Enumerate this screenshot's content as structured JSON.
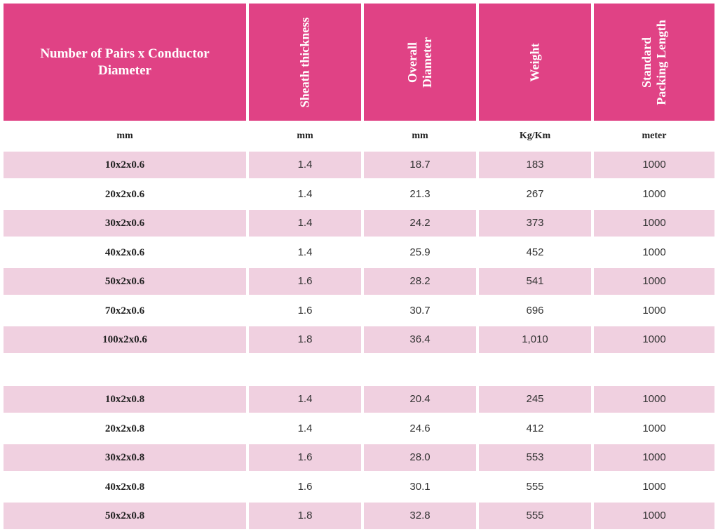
{
  "header": {
    "first": "Number of Pairs x Conductor Diameter",
    "vertical": [
      [
        "Sheath thickness"
      ],
      [
        "Overall",
        "Diameter"
      ],
      [
        "Weight"
      ],
      [
        "Standard",
        "Packing Length"
      ]
    ]
  },
  "units": [
    "mm",
    "mm",
    "mm",
    "Kg/Km",
    "meter"
  ],
  "group1": [
    [
      "10x2x0.6",
      "1.4",
      "18.7",
      "183",
      "1000"
    ],
    [
      "20x2x0.6",
      "1.4",
      "21.3",
      "267",
      "1000"
    ],
    [
      "30x2x0.6",
      "1.4",
      "24.2",
      "373",
      "1000"
    ],
    [
      "40x2x0.6",
      "1.4",
      "25.9",
      "452",
      "1000"
    ],
    [
      "50x2x0.6",
      "1.6",
      "28.2",
      "541",
      "1000"
    ],
    [
      "70x2x0.6",
      "1.6",
      "30.7",
      "696",
      "1000"
    ],
    [
      "100x2x0.6",
      "1.8",
      "36.4",
      "1,010",
      "1000"
    ]
  ],
  "group2": [
    [
      "10x2x0.8",
      "1.4",
      "20.4",
      "245",
      "1000"
    ],
    [
      "20x2x0.8",
      "1.4",
      "24.6",
      "412",
      "1000"
    ],
    [
      "30x2x0.8",
      "1.6",
      "28.0",
      "553",
      "1000"
    ],
    [
      "40x2x0.8",
      "1.6",
      "30.1",
      "555",
      "1000"
    ],
    [
      "50x2x0.8",
      "1.8",
      "32.8",
      "555",
      "1000"
    ]
  ]
}
